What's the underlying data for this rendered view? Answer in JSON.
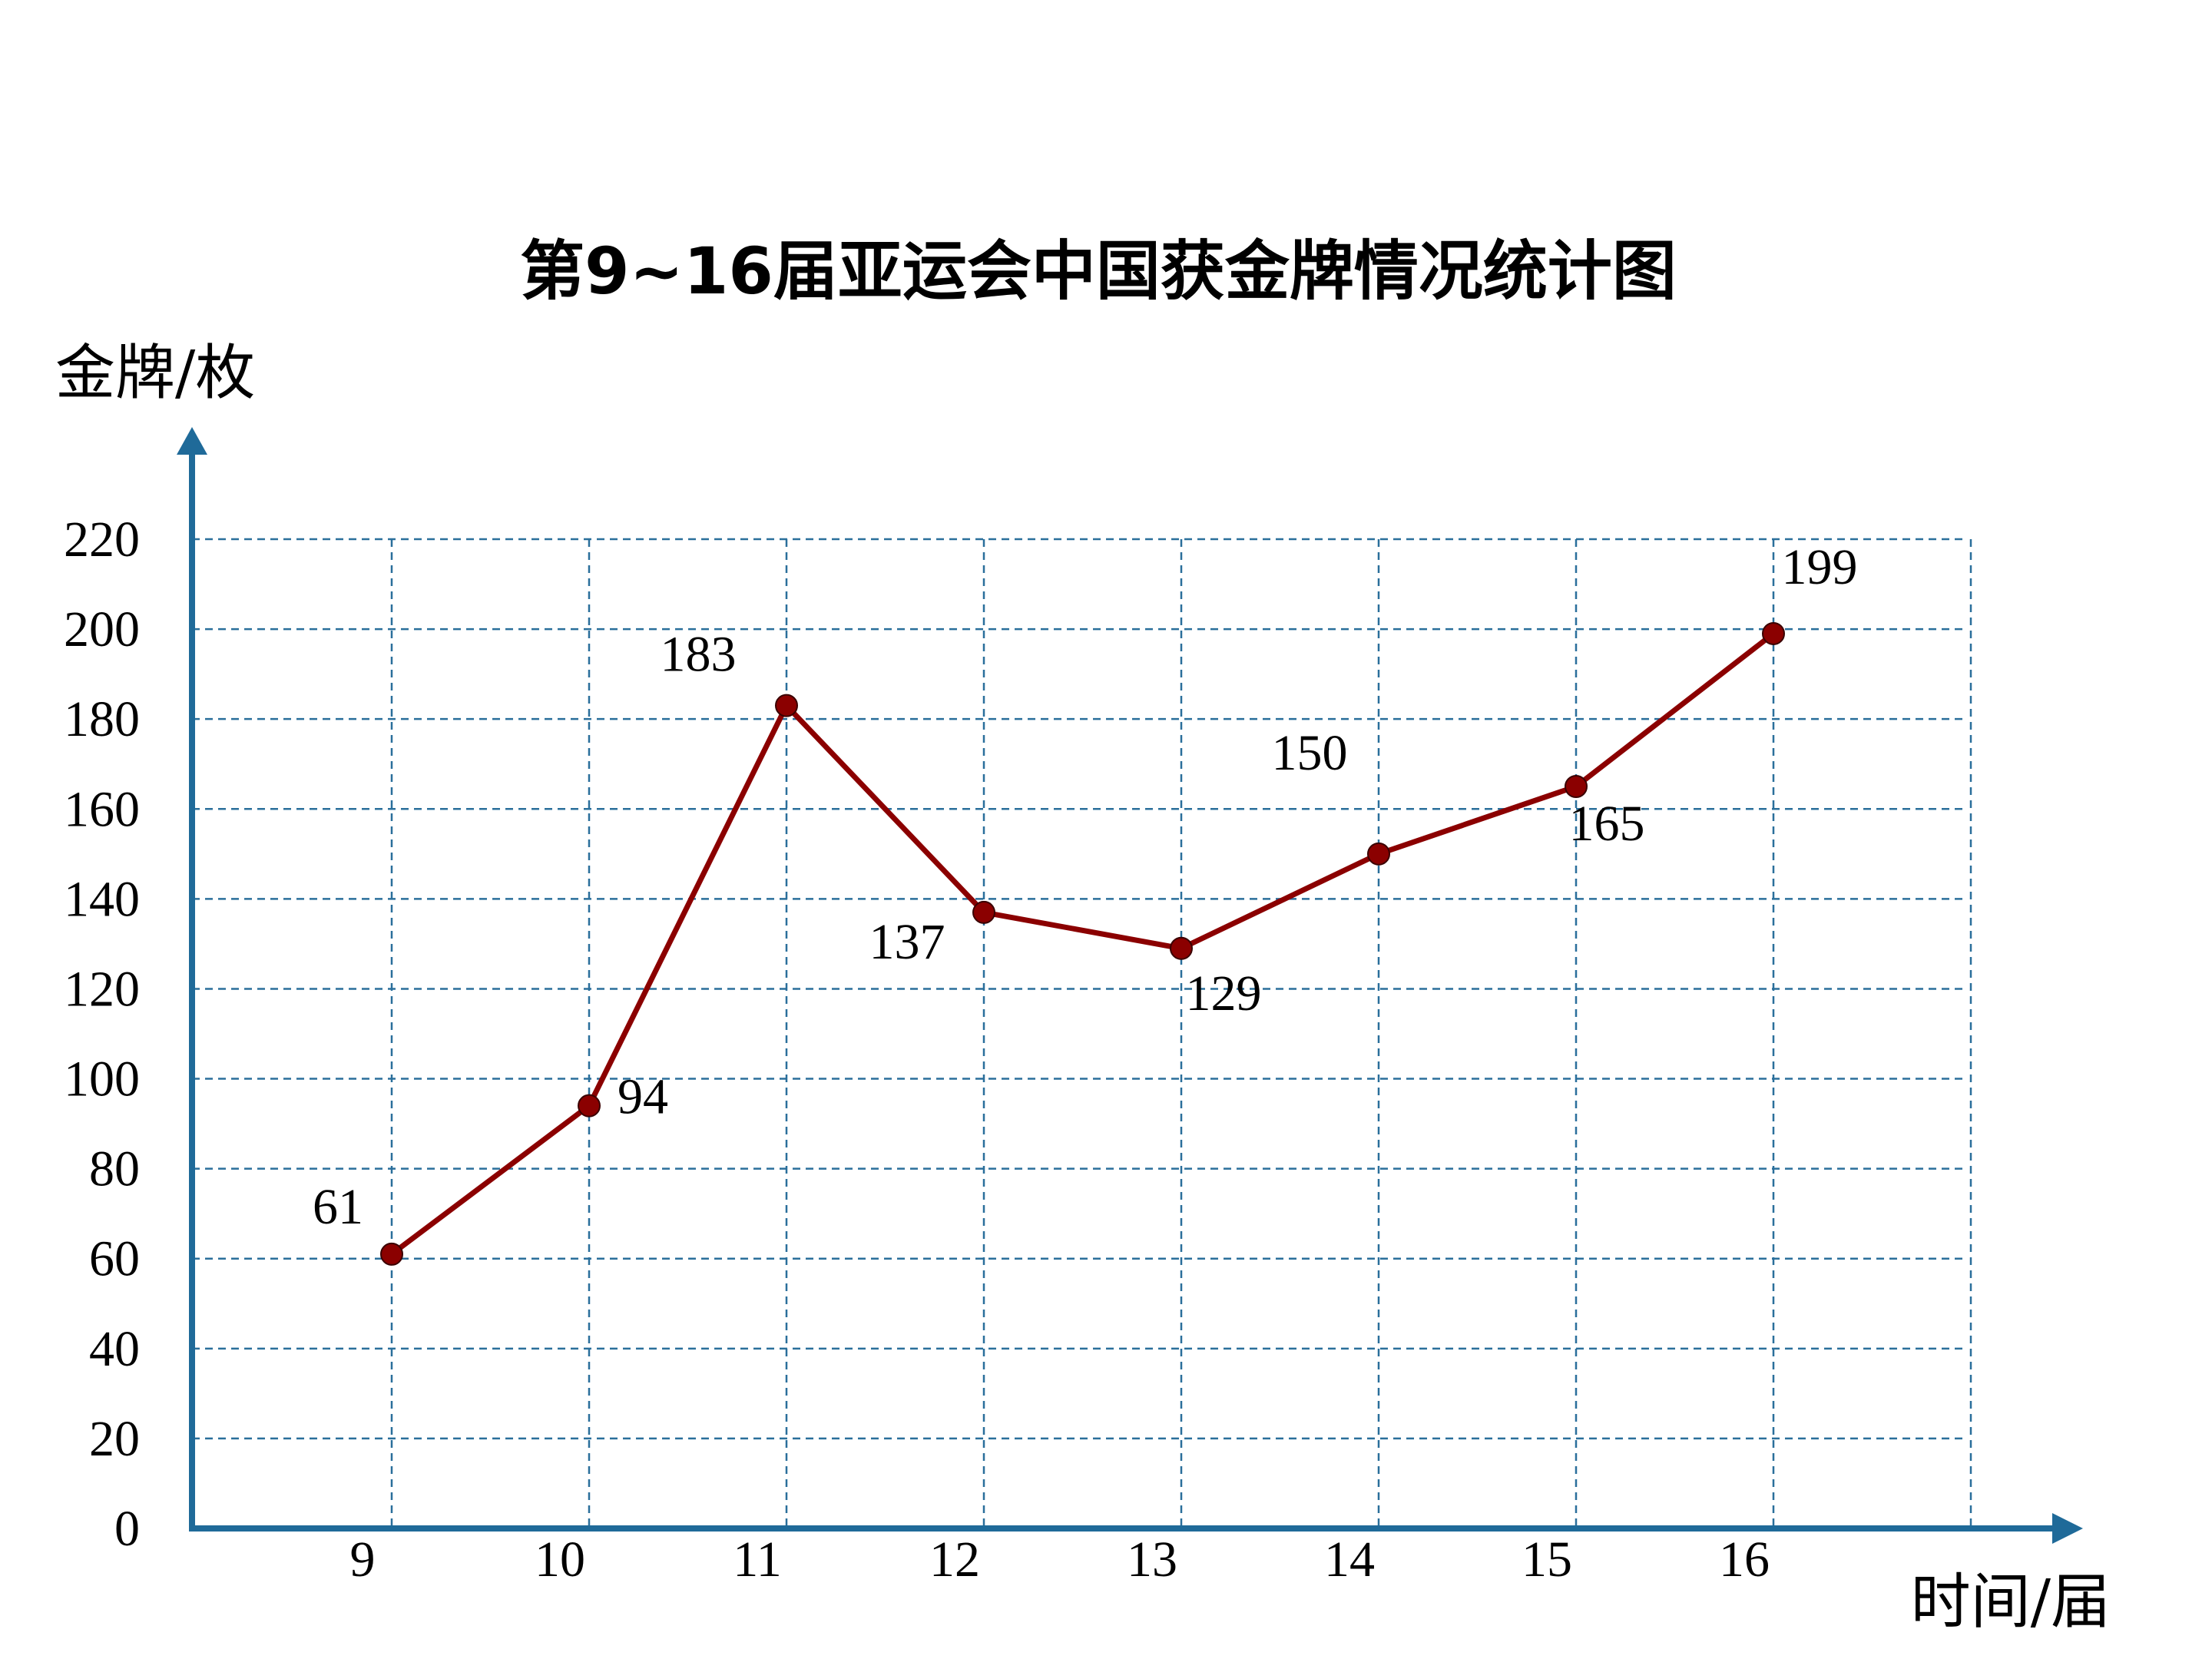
{
  "chart_data": {
    "type": "line",
    "title": "第9~16届亚运会中国获金牌情况统计图",
    "xlabel": "时间/届",
    "ylabel": "金牌/枚",
    "categories": [
      "9",
      "10",
      "11",
      "12",
      "13",
      "14",
      "15",
      "16"
    ],
    "series": [
      {
        "values": [
          61,
          94,
          183,
          137,
          129,
          150,
          165,
          199
        ],
        "data_labels": [
          "61",
          "94",
          "183",
          "137",
          "129",
          "150",
          "165",
          "199"
        ]
      }
    ],
    "ylim": [
      0,
      220
    ],
    "yticks": [
      0,
      20,
      40,
      60,
      80,
      100,
      120,
      140,
      160,
      180,
      200,
      220
    ],
    "grid": true,
    "line_color": "#8b0000",
    "axis_color": "#1f6a99",
    "grid_color": "#2a6f9b"
  }
}
